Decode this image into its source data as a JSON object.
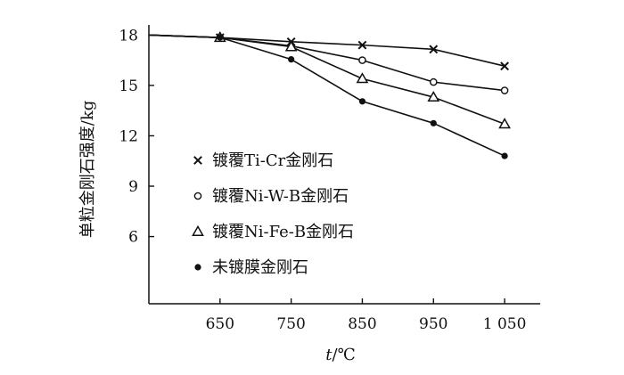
{
  "chart_data": {
    "type": "line",
    "xlabel_italic": "t",
    "xlabel_unit": "/℃",
    "ylabel": "单粒金刚石强度/kg",
    "x": [
      550,
      650,
      750,
      850,
      950,
      1050
    ],
    "xticks": [
      650,
      750,
      850,
      950,
      1050
    ],
    "xtick_labels": [
      "650",
      "750",
      "850",
      "950",
      "1 050"
    ],
    "xlim": [
      550,
      1100
    ],
    "yticks": [
      6,
      9,
      12,
      15,
      18
    ],
    "yticks_labels": [
      "6",
      "9",
      "12",
      "15",
      "18"
    ],
    "ylim": [
      2,
      18.6
    ],
    "grid": false,
    "legend_position": "left",
    "series": [
      {
        "name": "镀覆Ti-Cr金刚石",
        "marker": "cross",
        "values": [
          18.0,
          17.85,
          17.6,
          17.4,
          17.15,
          16.15
        ]
      },
      {
        "name": "镀覆Ni-W-B金刚石",
        "marker": "circle-open",
        "values": [
          18.0,
          17.85,
          17.35,
          16.5,
          15.2,
          14.7
        ]
      },
      {
        "name": "镀覆Ni-Fe-B金刚石",
        "marker": "triangle-open",
        "values": [
          18.0,
          17.85,
          17.3,
          15.4,
          14.3,
          12.7
        ]
      },
      {
        "name": "未镀膜金刚石",
        "marker": "dot-filled",
        "values": [
          18.0,
          17.85,
          16.55,
          14.05,
          12.75,
          10.8
        ]
      }
    ]
  }
}
